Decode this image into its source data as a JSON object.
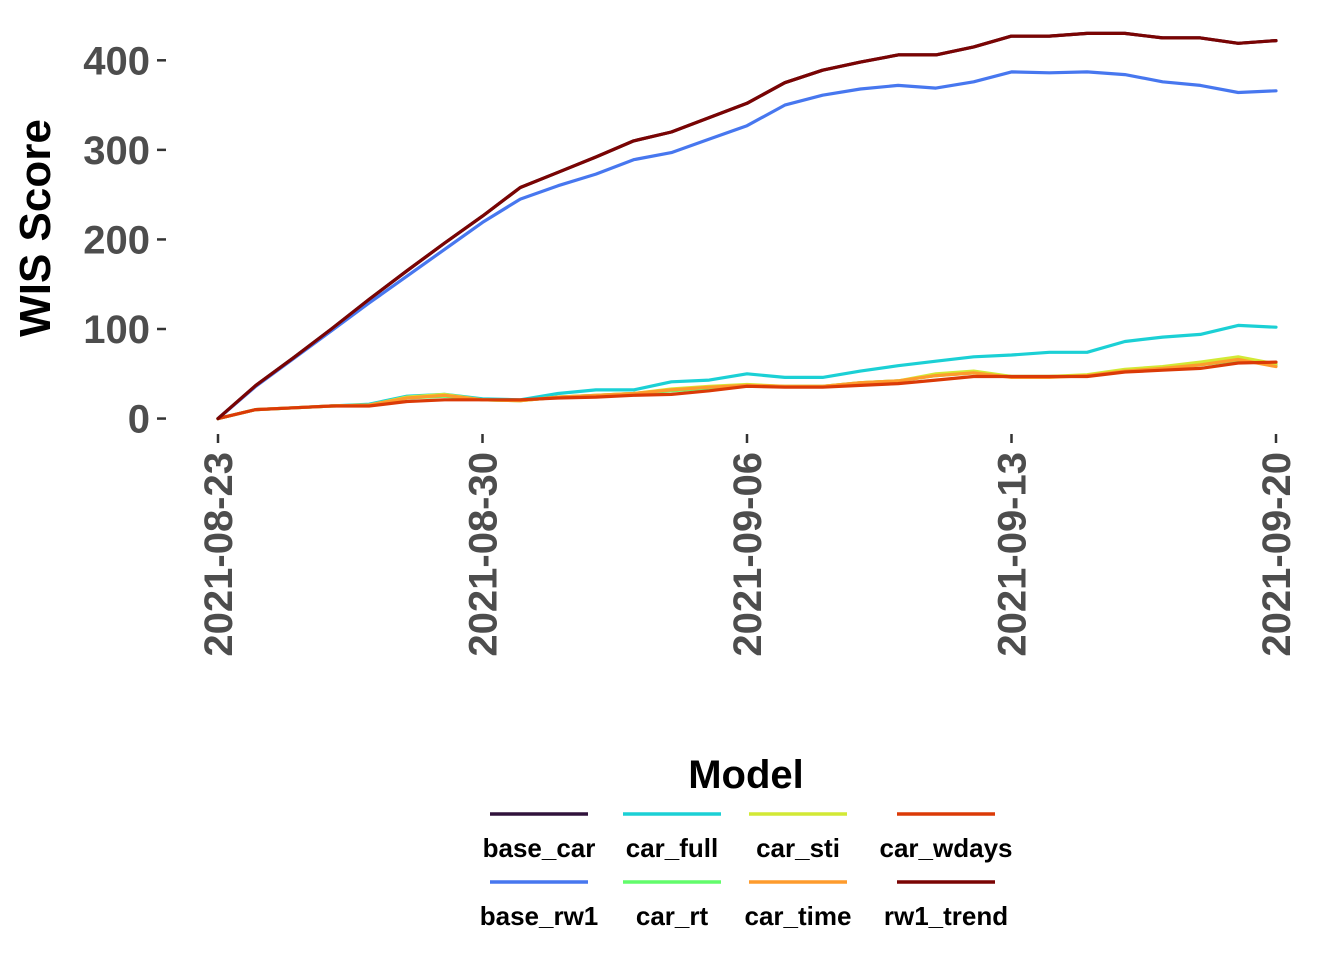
{
  "chart_data": {
    "type": "line",
    "ylabel": "WIS Score",
    "xlabel": "",
    "ylim": [
      -15,
      445
    ],
    "yticks": [
      0,
      100,
      200,
      300,
      400
    ],
    "xticks": [
      "2021-08-23",
      "2021-08-30",
      "2021-09-06",
      "2021-09-13",
      "2021-09-20"
    ],
    "x_start": "2021-08-23",
    "grid": false,
    "legend": {
      "title": "Model",
      "placement": "bottom",
      "columns": 4
    },
    "x": [
      "2021-08-23",
      "2021-08-24",
      "2021-08-25",
      "2021-08-26",
      "2021-08-27",
      "2021-08-28",
      "2021-08-29",
      "2021-08-30",
      "2021-08-31",
      "2021-09-01",
      "2021-09-02",
      "2021-09-03",
      "2021-09-04",
      "2021-09-05",
      "2021-09-06",
      "2021-09-07",
      "2021-09-08",
      "2021-09-09",
      "2021-09-10",
      "2021-09-11",
      "2021-09-12",
      "2021-09-13",
      "2021-09-14",
      "2021-09-15",
      "2021-09-16",
      "2021-09-17",
      "2021-09-18",
      "2021-09-19",
      "2021-09-20"
    ],
    "series": [
      {
        "name": "base_car",
        "color": "#30123b",
        "values": [
          0,
          37,
          68,
          100,
          133,
          165,
          196,
          226,
          258,
          275,
          292,
          310,
          320,
          336,
          352,
          375,
          389,
          398,
          406,
          406,
          415,
          427,
          427,
          430,
          430,
          425,
          425,
          419,
          422
        ]
      },
      {
        "name": "base_rw1",
        "color": "#4777ef",
        "values": [
          0,
          36,
          67,
          98,
          129,
          159,
          189,
          219,
          245,
          260,
          273,
          289,
          297,
          312,
          327,
          350,
          361,
          368,
          372,
          369,
          376,
          387,
          386,
          387,
          384,
          376,
          372,
          364,
          366
        ]
      },
      {
        "name": "car_full",
        "color": "#1bd0d5",
        "values": [
          0,
          10,
          12,
          14,
          16,
          25,
          27,
          22,
          21,
          28,
          32,
          32,
          41,
          43,
          50,
          46,
          46,
          53,
          59,
          64,
          69,
          71,
          74,
          74,
          86,
          91,
          94,
          104,
          102
        ]
      },
      {
        "name": "car_rt",
        "color": "#62fc6b",
        "values": [
          0,
          10,
          12,
          14,
          15,
          23,
          25,
          21,
          20,
          24,
          26,
          28,
          31,
          34,
          37,
          36,
          36,
          40,
          42,
          48,
          51,
          47,
          47,
          48,
          53,
          56,
          60,
          65,
          60
        ]
      },
      {
        "name": "car_sti",
        "color": "#d2e935",
        "values": [
          0,
          10,
          12,
          14,
          15,
          24,
          27,
          21,
          20,
          24,
          26,
          28,
          33,
          36,
          38,
          36,
          36,
          40,
          42,
          50,
          53,
          47,
          47,
          49,
          55,
          58,
          63,
          69,
          61
        ]
      },
      {
        "name": "car_time",
        "color": "#fe9b2d",
        "values": [
          0,
          10,
          12,
          14,
          15,
          23,
          26,
          21,
          20,
          24,
          26,
          28,
          32,
          35,
          37,
          36,
          36,
          40,
          42,
          48,
          51,
          46,
          46,
          48,
          53,
          56,
          60,
          66,
          58
        ]
      },
      {
        "name": "car_wdays",
        "color": "#db3a07",
        "values": [
          0,
          10,
          12,
          14,
          14,
          19,
          21,
          21,
          21,
          23,
          24,
          26,
          27,
          31,
          36,
          35,
          35,
          37,
          39,
          43,
          47,
          47,
          47,
          47,
          52,
          54,
          56,
          62,
          63
        ]
      },
      {
        "name": "rw1_trend",
        "color": "#7a0403",
        "values": [
          0,
          37,
          68,
          100,
          133,
          165,
          196,
          226,
          258,
          275,
          292,
          310,
          320,
          336,
          352,
          375,
          389,
          398,
          406,
          406,
          415,
          427,
          427,
          430,
          430,
          425,
          425,
          419,
          422
        ]
      }
    ]
  }
}
